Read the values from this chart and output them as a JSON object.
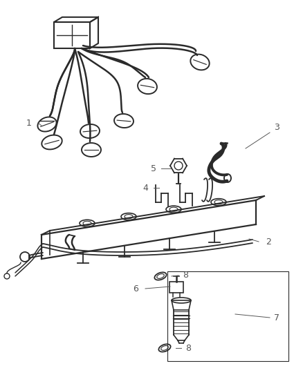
{
  "bg_color": "#ffffff",
  "line_color": "#2a2a2a",
  "label_color": "#555555",
  "fig_width": 4.39,
  "fig_height": 5.33,
  "dpi": 100
}
